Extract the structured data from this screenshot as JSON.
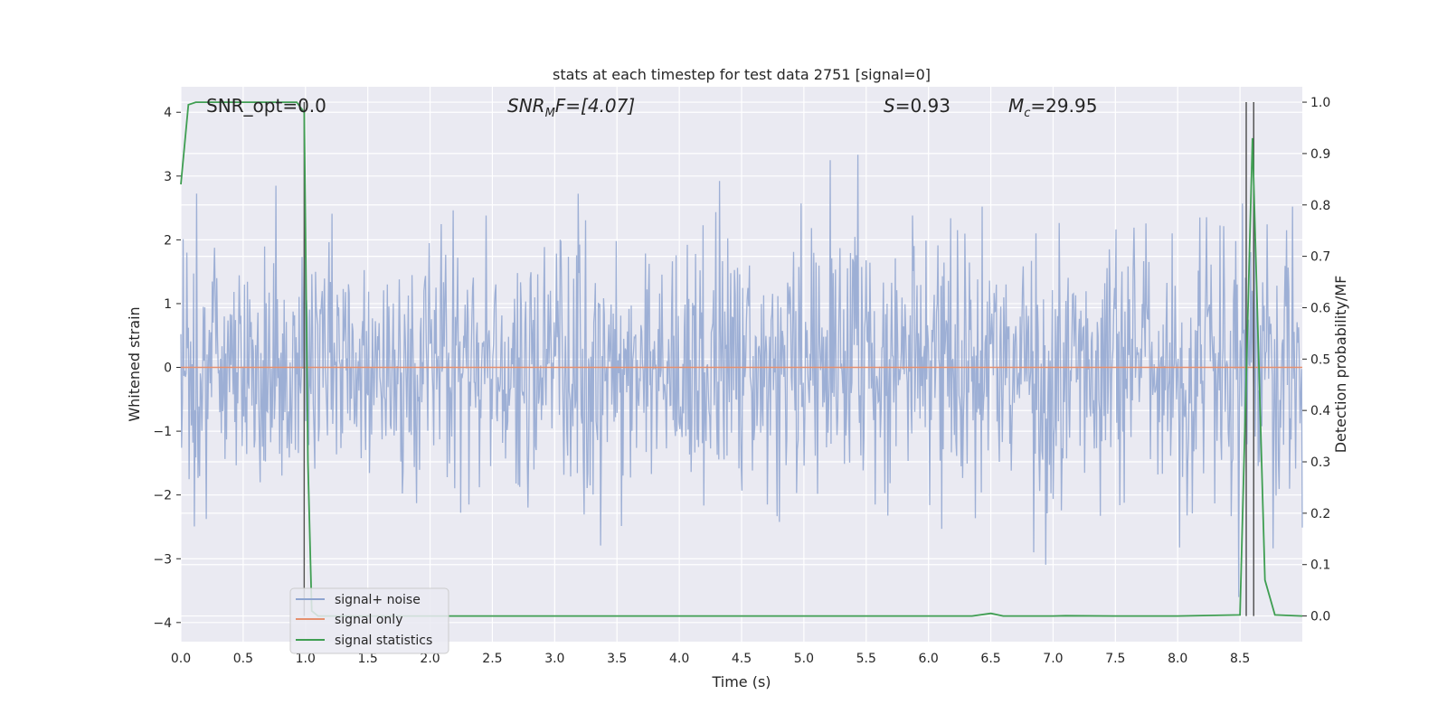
{
  "chart_data": {
    "type": "line",
    "title": "stats at each timestep for test data 2751 [signal=0]",
    "xlabel": "Time (s)",
    "ylabel": "Whitened strain",
    "ylabel_right": "Detection probability/MF",
    "xlim": [
      0,
      9
    ],
    "ylim": [
      -4.3,
      4.4
    ],
    "ylim_right": [
      -0.05,
      1.03
    ],
    "x_ticks": [
      "0.0",
      "0.5",
      "1.0",
      "1.5",
      "2.0",
      "2.5",
      "3.0",
      "3.5",
      "4.0",
      "4.5",
      "5.0",
      "5.5",
      "6.0",
      "6.5",
      "7.0",
      "7.5",
      "8.0",
      "8.5"
    ],
    "y_ticks": [
      "4",
      "3",
      "2",
      "1",
      "0",
      "−1",
      "−2",
      "−3",
      "−4"
    ],
    "y_ticks_right": [
      "1.0",
      "0.9",
      "0.8",
      "0.7",
      "0.6",
      "0.5",
      "0.4",
      "0.3",
      "0.2",
      "0.1",
      "0.0"
    ],
    "grid": true,
    "legend_position": "lower-left",
    "annotations": {
      "snr_opt": "SNR_opt=0.0",
      "snr_mf_main": "SNR",
      "snr_mf_sub": "M",
      "snr_mf_rest": "F=[4.07]",
      "s_var": "S",
      "s_rest": "=0.93",
      "mc_var": "M",
      "mc_sub": "c",
      "mc_rest": "=29.95"
    },
    "vertical_markers_x": [
      0.99,
      8.55,
      8.61
    ],
    "series": [
      {
        "name": "signal+ noise",
        "color": "#8fa5d0",
        "axis": "left",
        "description_values": "whitened noise, dense, approximately within -3.5 to 4"
      },
      {
        "name": "signal only",
        "color": "#e58f6e",
        "axis": "left",
        "x": [
          0,
          9
        ],
        "y": [
          0,
          0
        ]
      },
      {
        "name": "signal statistics",
        "color": "#3f9e52",
        "axis": "right",
        "x": [
          0.0,
          0.06,
          0.12,
          0.5,
          0.93,
          0.99,
          1.02,
          1.05,
          1.1,
          1.2,
          2.0,
          4.0,
          6.0,
          6.35,
          6.5,
          6.6,
          7.0,
          7.1,
          7.5,
          8.0,
          8.5,
          8.6,
          8.7,
          8.78,
          9.0
        ],
        "y": [
          0.84,
          0.995,
          1.0,
          1.0,
          1.0,
          0.98,
          0.3,
          0.01,
          0.0,
          0.0,
          0.0,
          0.0,
          0.0,
          0.0,
          0.005,
          0.0,
          0.0,
          0.0005,
          0.0,
          0.0,
          0.002,
          0.93,
          0.07,
          0.002,
          0.0
        ]
      }
    ]
  }
}
